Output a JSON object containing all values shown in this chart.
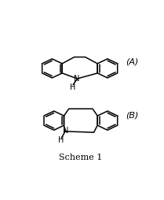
{
  "title": "Scheme 1",
  "label_A": "(A)",
  "label_B": "(B)",
  "bg_color": "#ffffff",
  "line_color": "#000000",
  "fig_width": 2.09,
  "fig_height": 2.54,
  "dpi": 100,
  "lw": 1.1,
  "font_size_label": 8,
  "font_size_NH": 7,
  "font_size_scheme": 8
}
